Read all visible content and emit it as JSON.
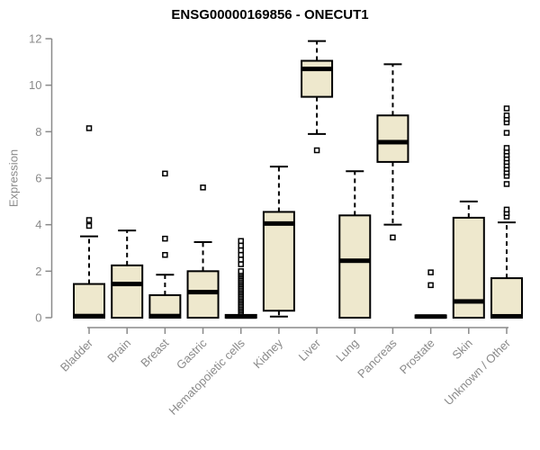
{
  "chart_data": {
    "type": "boxplot",
    "title": "ENSG00000169856 - ONECUT1",
    "xlabel": "",
    "ylabel": "Expression",
    "ylim": [
      0,
      12
    ],
    "yticks": [
      0,
      2,
      4,
      6,
      8,
      10,
      12
    ],
    "grid": false,
    "legend": "none",
    "categories": [
      "Bladder",
      "Brain",
      "Breast",
      "Gastric",
      "Hematopoietic cells",
      "Kidney",
      "Liver",
      "Lung",
      "Pancreas",
      "Prostate",
      "Skin",
      "Unknown / Other"
    ],
    "series": [
      {
        "name": "Bladder",
        "whisker_low": 0,
        "q1": 0,
        "median": 0.07,
        "q3": 1.45,
        "whisker_high": 3.5,
        "outliers": [
          3.95,
          4.2,
          8.15
        ]
      },
      {
        "name": "Brain",
        "whisker_low": 0,
        "q1": 0,
        "median": 1.45,
        "q3": 2.25,
        "whisker_high": 3.75,
        "outliers": []
      },
      {
        "name": "Breast",
        "whisker_low": 0,
        "q1": 0,
        "median": 0.07,
        "q3": 0.97,
        "whisker_high": 1.85,
        "outliers": [
          2.7,
          3.4,
          6.2
        ]
      },
      {
        "name": "Gastric",
        "whisker_low": 0,
        "q1": 0,
        "median": 1.1,
        "q3": 2.0,
        "whisker_high": 3.25,
        "outliers": [
          5.6
        ]
      },
      {
        "name": "Hematopoietic cells",
        "whisker_low": 0,
        "q1": 0,
        "median": 0.05,
        "q3": 0.12,
        "whisker_high": 0.12,
        "outliers": [
          0.25,
          0.32,
          0.39,
          0.46,
          0.53,
          0.6,
          0.67,
          0.74,
          0.81,
          0.88,
          0.95,
          1.02,
          1.09,
          1.16,
          1.23,
          1.3,
          1.37,
          1.44,
          1.51,
          1.58,
          1.65,
          1.72,
          1.79,
          1.86,
          1.93,
          2.0,
          2.3,
          2.5,
          2.7,
          2.9,
          3.1,
          3.3
        ]
      },
      {
        "name": "Kidney",
        "whisker_low": 0.05,
        "q1": 0.3,
        "median": 4.05,
        "q3": 4.55,
        "whisker_high": 6.5,
        "outliers": []
      },
      {
        "name": "Liver",
        "whisker_low": 7.9,
        "q1": 9.5,
        "median": 10.7,
        "q3": 11.05,
        "whisker_high": 11.9,
        "outliers": [
          7.2
        ]
      },
      {
        "name": "Lung",
        "whisker_low": 0,
        "q1": 0,
        "median": 2.45,
        "q3": 4.4,
        "whisker_high": 6.3,
        "outliers": []
      },
      {
        "name": "Pancreas",
        "whisker_low": 4.0,
        "q1": 6.7,
        "median": 7.55,
        "q3": 8.7,
        "whisker_high": 10.9,
        "outliers": [
          3.45
        ]
      },
      {
        "name": "Prostate",
        "whisker_low": 0,
        "q1": 0,
        "median": 0.05,
        "q3": 0.1,
        "whisker_high": 0.1,
        "outliers": [
          1.4,
          1.95
        ]
      },
      {
        "name": "Skin",
        "whisker_low": 0,
        "q1": 0,
        "median": 0.7,
        "q3": 4.3,
        "whisker_high": 5.0,
        "outliers": []
      },
      {
        "name": "Unknown / Other",
        "whisker_low": 0,
        "q1": 0,
        "median": 0.06,
        "q3": 1.7,
        "whisker_high": 4.1,
        "outliers": [
          4.35,
          4.5,
          4.65,
          5.75,
          6.1,
          6.25,
          6.4,
          6.55,
          6.7,
          6.85,
          7.0,
          7.15,
          7.3,
          7.95,
          8.4,
          8.55,
          8.7,
          9.0
        ]
      }
    ],
    "colors": {
      "box_fill": "#EEE8CD",
      "box_border": "#000000",
      "median": "#000000",
      "whisker": "#000000",
      "outlier_fill": "#FFFFFF",
      "axis": "#8A8A8A",
      "title": "#000000",
      "background": "#FFFFFF"
    }
  }
}
